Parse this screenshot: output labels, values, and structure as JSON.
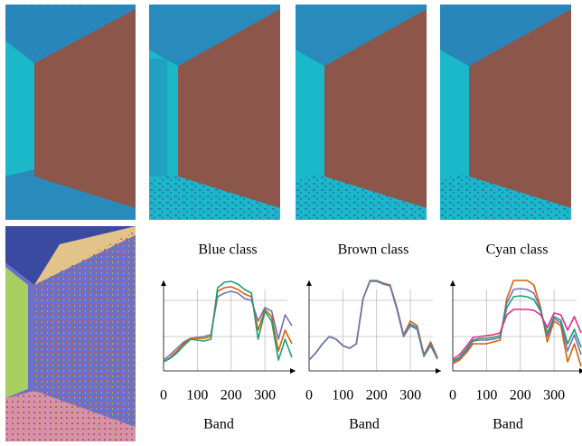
{
  "chart_data": [
    {
      "type": "line",
      "title": "Blue class",
      "xlabel": "Band",
      "xlim": [
        0,
        380
      ],
      "xticks": [
        0,
        100,
        200,
        300
      ],
      "ylim": [
        0,
        1
      ],
      "ygrid": [
        0.38,
        0.78
      ],
      "grid": true,
      "x": [
        0,
        20,
        40,
        60,
        80,
        100,
        120,
        140,
        160,
        180,
        200,
        220,
        240,
        260,
        280,
        300,
        320,
        340,
        360,
        380
      ],
      "series": [
        {
          "color": "#7570b3",
          "values": [
            0.12,
            0.18,
            0.25,
            0.32,
            0.36,
            0.37,
            0.38,
            0.4,
            0.82,
            0.86,
            0.88,
            0.86,
            0.8,
            0.78,
            0.55,
            0.7,
            0.66,
            0.35,
            0.62,
            0.5
          ]
        },
        {
          "color": "#d95f02",
          "values": [
            0.1,
            0.15,
            0.22,
            0.3,
            0.36,
            0.36,
            0.36,
            0.38,
            0.88,
            0.92,
            0.93,
            0.9,
            0.85,
            0.82,
            0.45,
            0.68,
            0.6,
            0.22,
            0.45,
            0.3
          ]
        },
        {
          "color": "#1b9e77",
          "values": [
            0.1,
            0.14,
            0.2,
            0.28,
            0.35,
            0.34,
            0.33,
            0.35,
            0.92,
            0.98,
            0.99,
            0.96,
            0.9,
            0.86,
            0.35,
            0.66,
            0.55,
            0.12,
            0.35,
            0.15
          ]
        }
      ]
    },
    {
      "type": "line",
      "title": "Brown class",
      "xlabel": "Band",
      "xlim": [
        0,
        380
      ],
      "xticks": [
        0,
        100,
        200,
        300
      ],
      "ylim": [
        0,
        1
      ],
      "ygrid": [
        0.38,
        0.78
      ],
      "grid": true,
      "x": [
        0,
        20,
        40,
        60,
        80,
        100,
        120,
        140,
        160,
        180,
        200,
        220,
        240,
        260,
        280,
        300,
        320,
        340,
        360,
        380
      ],
      "series": [
        {
          "color": "#d95f02",
          "values": [
            0.12,
            0.2,
            0.3,
            0.38,
            0.35,
            0.28,
            0.25,
            0.3,
            0.8,
            1.0,
            1.0,
            0.97,
            0.95,
            0.7,
            0.4,
            0.55,
            0.5,
            0.18,
            0.32,
            0.15
          ]
        },
        {
          "color": "#1b9e77",
          "values": [
            0.12,
            0.2,
            0.3,
            0.38,
            0.35,
            0.28,
            0.25,
            0.3,
            0.8,
            0.99,
            0.99,
            0.96,
            0.94,
            0.68,
            0.38,
            0.5,
            0.46,
            0.16,
            0.28,
            0.13
          ]
        },
        {
          "color": "#7570b3",
          "values": [
            0.12,
            0.2,
            0.3,
            0.38,
            0.35,
            0.28,
            0.25,
            0.3,
            0.8,
            0.99,
            1.0,
            0.96,
            0.94,
            0.69,
            0.39,
            0.52,
            0.48,
            0.17,
            0.3,
            0.14
          ]
        }
      ]
    },
    {
      "type": "line",
      "title": "Cyan class",
      "xlabel": "Band",
      "xlim": [
        0,
        380
      ],
      "xticks": [
        0,
        100,
        200,
        300
      ],
      "ylim": [
        0,
        1
      ],
      "ygrid": [
        0.38,
        0.78
      ],
      "grid": true,
      "x": [
        0,
        20,
        40,
        60,
        80,
        100,
        120,
        140,
        160,
        180,
        200,
        220,
        240,
        260,
        280,
        300,
        320,
        340,
        360,
        380
      ],
      "series": [
        {
          "color": "#d95f02",
          "values": [
            0.08,
            0.12,
            0.2,
            0.3,
            0.3,
            0.3,
            0.32,
            0.34,
            0.8,
            1.0,
            1.0,
            1.0,
            0.95,
            0.7,
            0.32,
            0.55,
            0.5,
            0.1,
            0.3,
            0.05
          ]
        },
        {
          "color": "#7570b3",
          "values": [
            0.1,
            0.14,
            0.22,
            0.33,
            0.34,
            0.34,
            0.35,
            0.37,
            0.75,
            0.9,
            0.91,
            0.9,
            0.86,
            0.68,
            0.38,
            0.58,
            0.53,
            0.22,
            0.4,
            0.18
          ]
        },
        {
          "color": "#1b9e77",
          "values": [
            0.11,
            0.15,
            0.24,
            0.34,
            0.36,
            0.36,
            0.37,
            0.39,
            0.7,
            0.82,
            0.83,
            0.82,
            0.79,
            0.66,
            0.42,
            0.6,
            0.56,
            0.3,
            0.46,
            0.26
          ]
        },
        {
          "color": "#e7298a",
          "values": [
            0.13,
            0.18,
            0.27,
            0.37,
            0.38,
            0.39,
            0.4,
            0.42,
            0.62,
            0.68,
            0.68,
            0.68,
            0.67,
            0.62,
            0.48,
            0.64,
            0.62,
            0.45,
            0.6,
            0.42
          ]
        }
      ]
    }
  ]
}
